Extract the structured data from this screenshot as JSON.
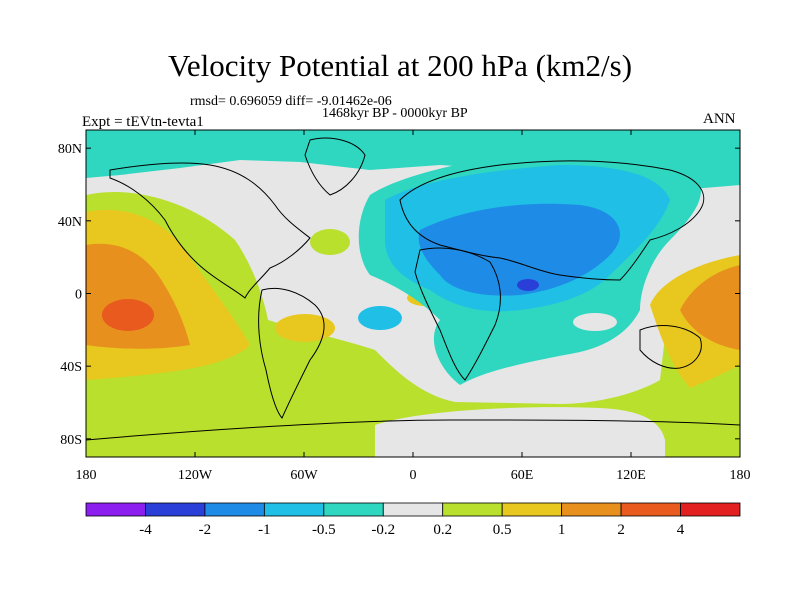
{
  "figure": {
    "title": "Velocity Potential at 200 hPa (km2/s)",
    "stats": "rmsd= 0.696059 diff= -9.01462e-06",
    "period": "1468kyr BP - 0000kyr BP",
    "experiment": "Expt = tEVtn-tevta1",
    "season": "ANN"
  },
  "axes": {
    "lat_ticks": [
      {
        "lat": 80,
        "label": "80N"
      },
      {
        "lat": 40,
        "label": "40N"
      },
      {
        "lat": 0,
        "label": "0"
      },
      {
        "lat": -40,
        "label": "40S"
      },
      {
        "lat": -80,
        "label": "80S"
      }
    ],
    "lon_ticks": [
      {
        "lon": -180,
        "label": "180"
      },
      {
        "lon": -120,
        "label": "120W"
      },
      {
        "lon": -60,
        "label": "60W"
      },
      {
        "lon": 0,
        "label": "0"
      },
      {
        "lon": 60,
        "label": "60E"
      },
      {
        "lon": 120,
        "label": "120E"
      },
      {
        "lon": 180,
        "label": "180"
      }
    ],
    "lat_range": [
      -90,
      90
    ],
    "lon_range": [
      -180,
      180
    ]
  },
  "colorbar": {
    "colors": [
      "#8c1ef0",
      "#2a3fd8",
      "#1e8ce6",
      "#1fbfe6",
      "#2fd7c0",
      "#e6e6e6",
      "#b9e02c",
      "#e8c81e",
      "#e8901e",
      "#e85a1e",
      "#e22020"
    ],
    "labels": [
      "-4",
      "-2",
      "-1",
      "-0.5",
      "-0.2",
      "0.2",
      "0.5",
      "1",
      "2",
      "4"
    ]
  }
}
